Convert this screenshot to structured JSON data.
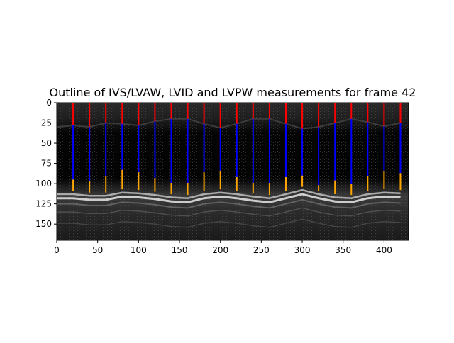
{
  "chart_data": {
    "type": "m-mode-measurement-overlay",
    "title": "Outline of IVS/LVAW, LVID and LVPW measurements for frame 42",
    "xlabel": "",
    "ylabel": "",
    "xlim": [
      0,
      430
    ],
    "ylim": [
      170,
      0
    ],
    "y_inverted": true,
    "x_ticks": [
      0,
      50,
      100,
      150,
      200,
      250,
      300,
      350,
      400
    ],
    "y_ticks": [
      0,
      25,
      50,
      75,
      100,
      125,
      150
    ],
    "background": "grayscale ultrasound M-mode image",
    "series": [
      {
        "key": "ivs",
        "color": "#ff0000"
      },
      {
        "key": "lvid",
        "color": "#0000ff"
      },
      {
        "key": "lvpw",
        "color": "#ffa500"
      }
    ],
    "measurements": [
      {
        "x": 0,
        "top": 0,
        "ivs_end": 30,
        "lvid_end": 101,
        "lvpw_end": 109
      },
      {
        "x": 20,
        "top": 0,
        "ivs_end": 28,
        "lvid_end": 95,
        "lvpw_end": 109
      },
      {
        "x": 40,
        "top": 0,
        "ivs_end": 30,
        "lvid_end": 97,
        "lvpw_end": 111
      },
      {
        "x": 60,
        "top": 0,
        "ivs_end": 25,
        "lvid_end": 91,
        "lvpw_end": 111
      },
      {
        "x": 80,
        "top": 0,
        "ivs_end": 26,
        "lvid_end": 83,
        "lvpw_end": 107
      },
      {
        "x": 100,
        "top": 0,
        "ivs_end": 28,
        "lvid_end": 86,
        "lvpw_end": 108
      },
      {
        "x": 120,
        "top": 0,
        "ivs_end": 23,
        "lvid_end": 93,
        "lvpw_end": 110
      },
      {
        "x": 140,
        "top": 0,
        "ivs_end": 20,
        "lvid_end": 99,
        "lvpw_end": 113
      },
      {
        "x": 160,
        "top": 0,
        "ivs_end": 20,
        "lvid_end": 99,
        "lvpw_end": 114
      },
      {
        "x": 180,
        "top": 0,
        "ivs_end": 26,
        "lvid_end": 86,
        "lvpw_end": 109
      },
      {
        "x": 200,
        "top": 0,
        "ivs_end": 31,
        "lvid_end": 84,
        "lvpw_end": 107
      },
      {
        "x": 220,
        "top": 0,
        "ivs_end": 26,
        "lvid_end": 92,
        "lvpw_end": 109
      },
      {
        "x": 240,
        "top": 0,
        "ivs_end": 20,
        "lvid_end": 99,
        "lvpw_end": 112
      },
      {
        "x": 260,
        "top": 0,
        "ivs_end": 20,
        "lvid_end": 99,
        "lvpw_end": 114
      },
      {
        "x": 280,
        "top": 0,
        "ivs_end": 26,
        "lvid_end": 92,
        "lvpw_end": 109
      },
      {
        "x": 300,
        "top": 0,
        "ivs_end": 32,
        "lvid_end": 90,
        "lvpw_end": 104
      },
      {
        "x": 320,
        "top": 0,
        "ivs_end": 30,
        "lvid_end": 102,
        "lvpw_end": 109
      },
      {
        "x": 340,
        "top": 0,
        "ivs_end": 25,
        "lvid_end": 96,
        "lvpw_end": 113
      },
      {
        "x": 360,
        "top": 0,
        "ivs_end": 20,
        "lvid_end": 100,
        "lvpw_end": 114
      },
      {
        "x": 380,
        "top": 0,
        "ivs_end": 24,
        "lvid_end": 91,
        "lvpw_end": 109
      },
      {
        "x": 400,
        "top": 0,
        "ivs_end": 29,
        "lvid_end": 84,
        "lvpw_end": 107
      },
      {
        "x": 420,
        "top": 0,
        "ivs_end": 25,
        "lvid_end": 87,
        "lvpw_end": 108
      }
    ]
  }
}
